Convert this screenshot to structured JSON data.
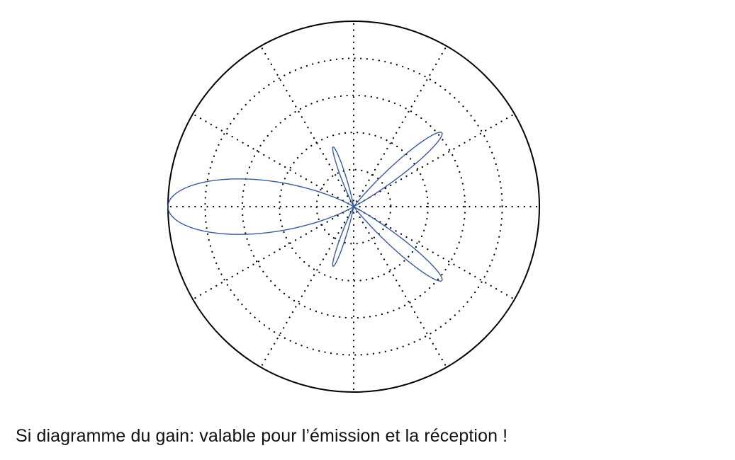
{
  "caption": "Si diagramme du gain: valable pour l’émission et la réception !",
  "colors": {
    "pattern": "#3a5a9a",
    "frame": "#000000",
    "grid": "#000000"
  },
  "chart_data": {
    "type": "polar",
    "title": "",
    "radial_range": [
      0,
      1
    ],
    "radial_gridlines": [
      0.2,
      0.4,
      0.6,
      0.8
    ],
    "angular_gridlines_deg": [
      0,
      30,
      60,
      90,
      120,
      150,
      180,
      210,
      240,
      270,
      300,
      330
    ],
    "tick_labels_shown": false,
    "grid": "dotted",
    "series": [
      {
        "lobes": [
          {
            "direction_deg": 180,
            "peak_gain": 1.0,
            "width_deg": 33
          },
          {
            "direction_deg": 40,
            "peak_gain": 0.62,
            "width_deg": 13
          },
          {
            "direction_deg": -40,
            "peak_gain": 0.62,
            "width_deg": 13
          },
          {
            "direction_deg": 109,
            "peak_gain": 0.34,
            "width_deg": 9
          },
          {
            "direction_deg": -109,
            "peak_gain": 0.34,
            "width_deg": 9
          }
        ]
      }
    ]
  }
}
